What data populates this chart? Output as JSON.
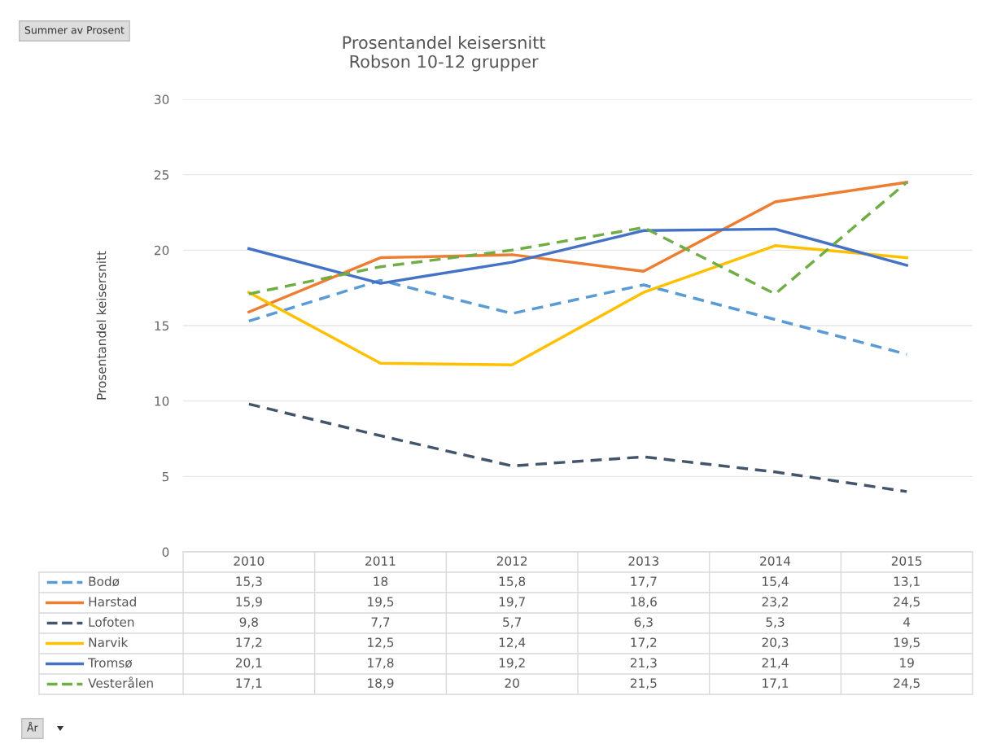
{
  "chart_data": {
    "type": "line",
    "title": "Prosentandel keisersnitt\nRobson 10-12 grupper",
    "ylabel": "Prosentandel keisersnitt",
    "categories": [
      "2010",
      "2011",
      "2012",
      "2013",
      "2014",
      "2015"
    ],
    "series": [
      {
        "name": "Bodø",
        "color": "#5b9bd5",
        "line_style": "dashed",
        "values": [
          15.3,
          18,
          15.8,
          17.7,
          15.4,
          13.1
        ],
        "value_labels": [
          "15,3",
          "18",
          "15,8",
          "17,7",
          "15,4",
          "13,1"
        ]
      },
      {
        "name": "Harstad",
        "color": "#ed7d31",
        "line_style": "solid",
        "values": [
          15.9,
          19.5,
          19.7,
          18.6,
          23.2,
          24.5
        ],
        "value_labels": [
          "15,9",
          "19,5",
          "19,7",
          "18,6",
          "23,2",
          "24,5"
        ]
      },
      {
        "name": "Lofoten",
        "color": "#44546a",
        "line_style": "dashed",
        "values": [
          9.8,
          7.7,
          5.7,
          6.3,
          5.3,
          4
        ],
        "value_labels": [
          "9,8",
          "7,7",
          "5,7",
          "6,3",
          "5,3",
          "4"
        ]
      },
      {
        "name": "Narvik",
        "color": "#ffc000",
        "line_style": "solid",
        "values": [
          17.2,
          12.5,
          12.4,
          17.2,
          20.3,
          19.5
        ],
        "value_labels": [
          "17,2",
          "12,5",
          "12,4",
          "17,2",
          "20,3",
          "19,5"
        ]
      },
      {
        "name": "Tromsø",
        "color": "#4472c4",
        "line_style": "solid",
        "values": [
          20.1,
          17.8,
          19.2,
          21.3,
          21.4,
          19
        ],
        "value_labels": [
          "20,1",
          "17,8",
          "19,2",
          "21,3",
          "21,4",
          "19"
        ]
      },
      {
        "name": "Vesterålen",
        "color": "#70ad47",
        "line_style": "dashed",
        "values": [
          17.1,
          18.9,
          20,
          21.5,
          17.1,
          24.5
        ],
        "value_labels": [
          "17,1",
          "18,9",
          "20",
          "21,5",
          "17,1",
          "24,5"
        ]
      }
    ],
    "ylim": [
      0,
      30
    ],
    "yticks": [
      0,
      5,
      10,
      15,
      20,
      25,
      30
    ],
    "grid": "y",
    "legend": "bottom",
    "marker": "none",
    "annotations": [
      "Summer av Prosent",
      "År"
    ]
  }
}
